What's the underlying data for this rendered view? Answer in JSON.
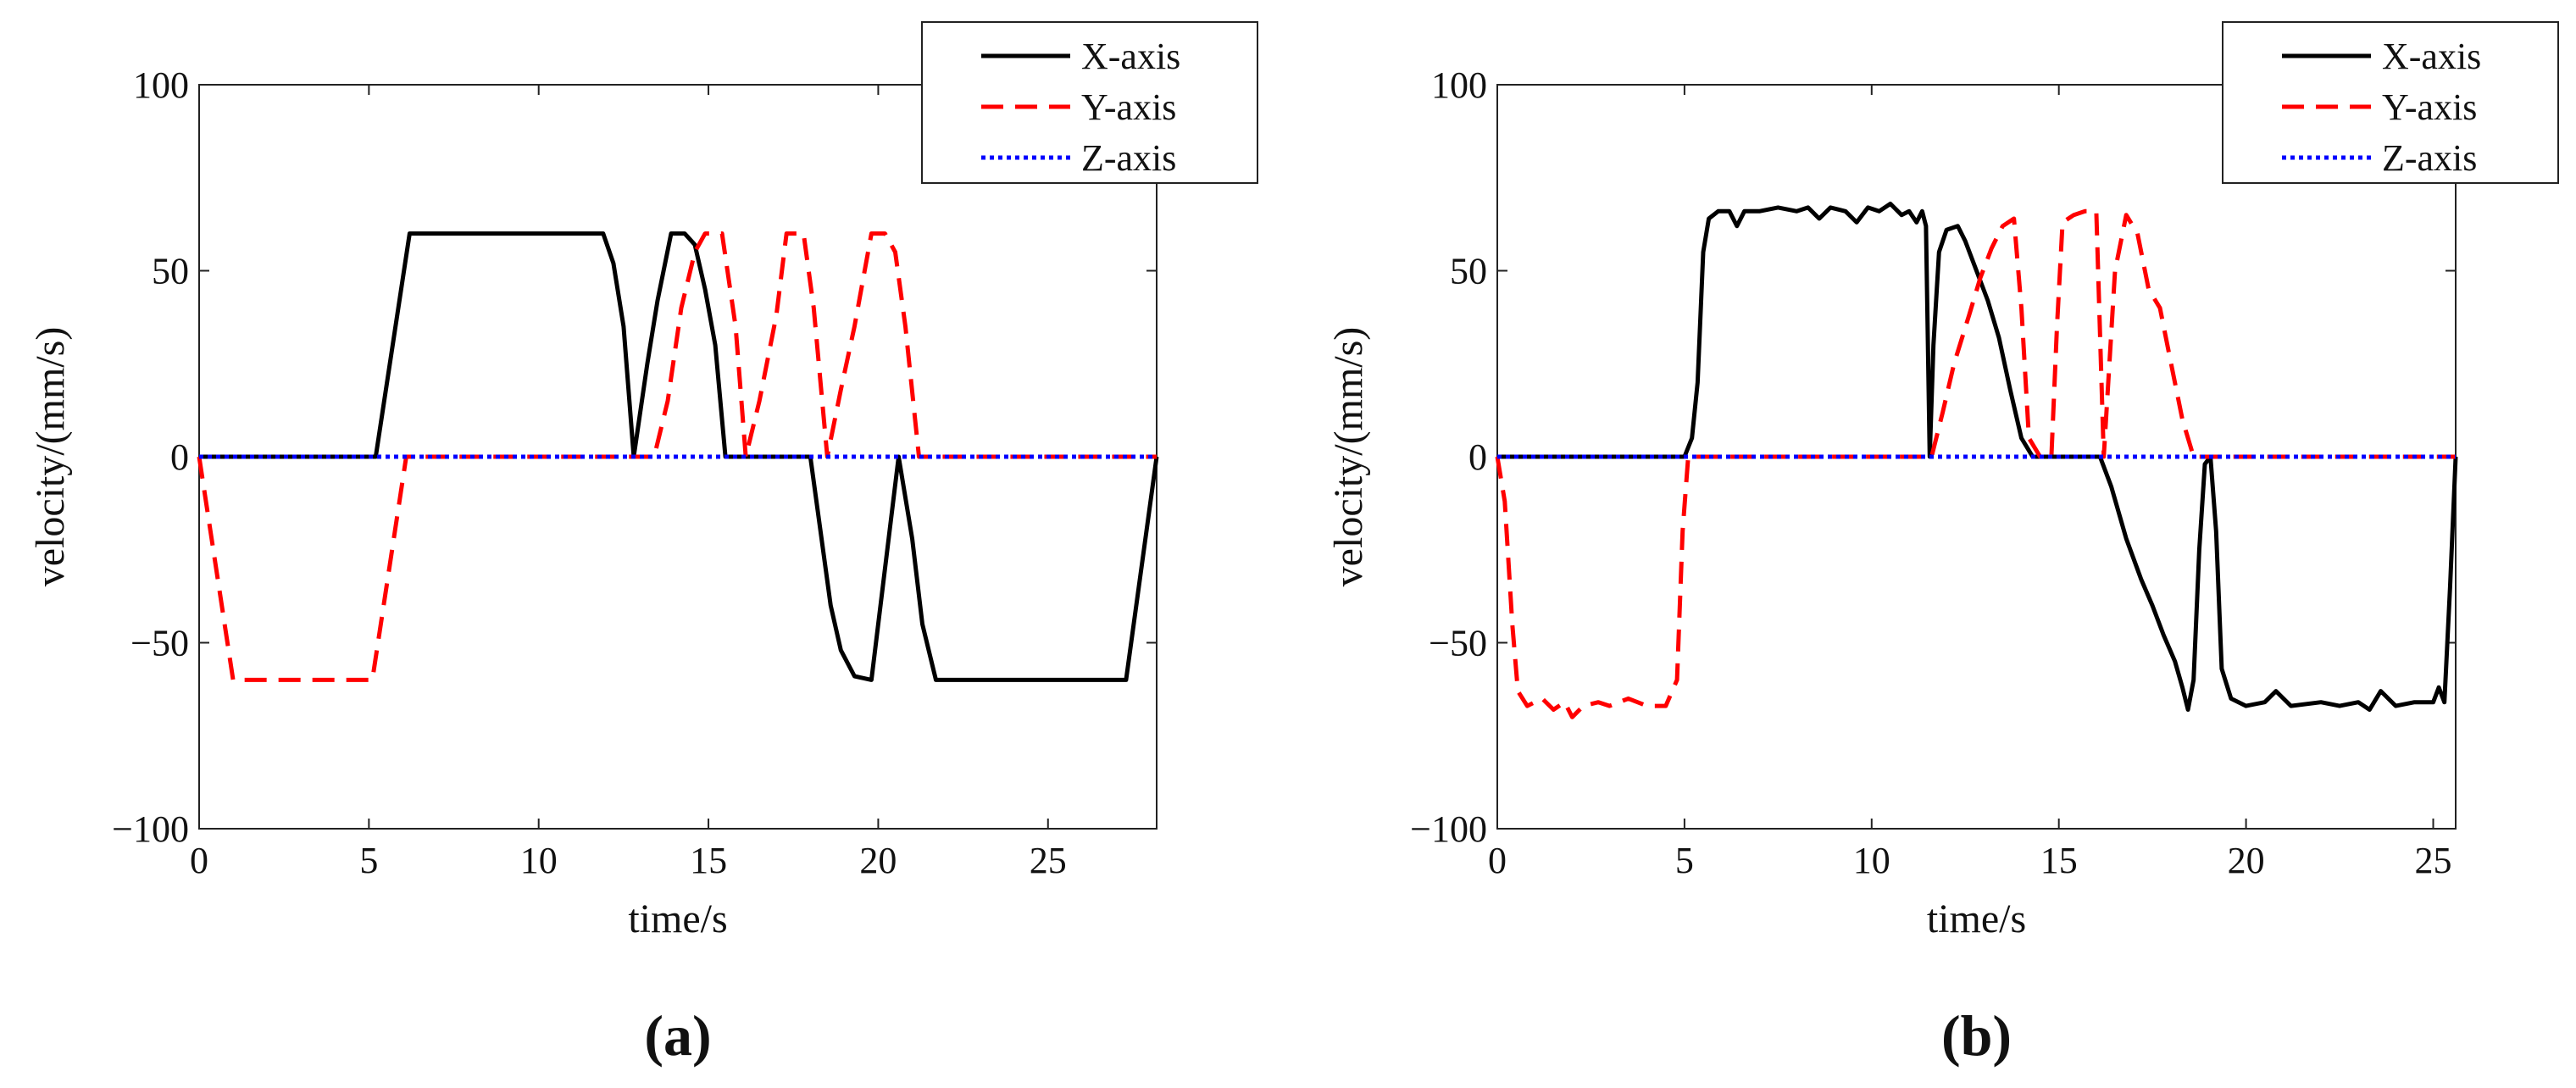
{
  "chart_data": [
    {
      "type": "line",
      "panel_label": "(a)",
      "xlabel": "time/s",
      "ylabel": "velocity/(mm/s)",
      "xlim": [
        0,
        28.2
      ],
      "ylim": [
        -100,
        100
      ],
      "xticks": [
        0,
        5,
        10,
        15,
        20,
        25
      ],
      "yticks": [
        100,
        50,
        0,
        -50,
        -100
      ],
      "ytick_labels": [
        "100",
        "50",
        "0",
        "−50",
        "−100"
      ],
      "legend": [
        "X-axis",
        "Y-axis",
        "Z-axis"
      ],
      "legend_position": "top-right",
      "series": [
        {
          "name": "X-axis",
          "color": "#000000",
          "style": "solid",
          "points": [
            [
              0,
              0
            ],
            [
              5.2,
              0
            ],
            [
              6.2,
              60
            ],
            [
              11.9,
              60
            ],
            [
              12.2,
              52
            ],
            [
              12.5,
              35
            ],
            [
              12.8,
              0
            ],
            [
              13.2,
              25
            ],
            [
              13.5,
              42
            ],
            [
              13.9,
              60
            ],
            [
              14.3,
              60
            ],
            [
              14.6,
              57
            ],
            [
              14.9,
              45
            ],
            [
              15.2,
              30
            ],
            [
              15.5,
              0
            ],
            [
              18.0,
              0
            ],
            [
              18.3,
              -20
            ],
            [
              18.6,
              -40
            ],
            [
              18.9,
              -52
            ],
            [
              19.3,
              -59
            ],
            [
              19.8,
              -60
            ],
            [
              20.6,
              0
            ],
            [
              21.0,
              -22
            ],
            [
              21.3,
              -45
            ],
            [
              21.7,
              -60
            ],
            [
              27.3,
              -60
            ],
            [
              28.2,
              0
            ]
          ]
        },
        {
          "name": "Y-axis",
          "color": "#ff0000",
          "style": "dashed",
          "points": [
            [
              0,
              0
            ],
            [
              1.0,
              -60
            ],
            [
              5.1,
              -60
            ],
            [
              6.1,
              0
            ],
            [
              13.4,
              0
            ],
            [
              13.8,
              15
            ],
            [
              14.2,
              40
            ],
            [
              14.6,
              55
            ],
            [
              14.9,
              60
            ],
            [
              15.4,
              60
            ],
            [
              15.8,
              35
            ],
            [
              16.1,
              0
            ],
            [
              16.5,
              15
            ],
            [
              17.0,
              38
            ],
            [
              17.3,
              60
            ],
            [
              17.8,
              60
            ],
            [
              18.1,
              40
            ],
            [
              18.5,
              0
            ],
            [
              18.9,
              18
            ],
            [
              19.3,
              35
            ],
            [
              19.8,
              60
            ],
            [
              20.2,
              60
            ],
            [
              20.5,
              55
            ],
            [
              20.8,
              35
            ],
            [
              21.2,
              0
            ],
            [
              28.2,
              0
            ]
          ]
        },
        {
          "name": "Z-axis",
          "color": "#0000ff",
          "style": "dotted",
          "points": [
            [
              0,
              0
            ],
            [
              28.2,
              0
            ]
          ]
        }
      ]
    },
    {
      "type": "line",
      "panel_label": "(b)",
      "xlabel": "time/s",
      "ylabel": "velocity/(mm/s)",
      "xlim": [
        0,
        25.6
      ],
      "ylim": [
        -100,
        100
      ],
      "xticks": [
        0,
        5,
        10,
        15,
        20,
        25
      ],
      "yticks": [
        100,
        50,
        0,
        -50,
        -100
      ],
      "ytick_labels": [
        "100",
        "50",
        "0",
        "−50",
        "−100"
      ],
      "legend": [
        "X-axis",
        "Y-axis",
        "Z-axis"
      ],
      "legend_position": "top-right",
      "series": [
        {
          "name": "X-axis",
          "color": "#000000",
          "style": "solid",
          "points": [
            [
              0,
              0
            ],
            [
              5.0,
              0
            ],
            [
              5.2,
              5
            ],
            [
              5.35,
              20
            ],
            [
              5.5,
              55
            ],
            [
              5.65,
              64
            ],
            [
              5.9,
              66
            ],
            [
              6.2,
              66
            ],
            [
              6.4,
              62
            ],
            [
              6.6,
              66
            ],
            [
              7.0,
              66
            ],
            [
              7.5,
              67
            ],
            [
              8.0,
              66
            ],
            [
              8.3,
              67
            ],
            [
              8.6,
              64
            ],
            [
              8.9,
              67
            ],
            [
              9.3,
              66
            ],
            [
              9.6,
              63
            ],
            [
              9.9,
              67
            ],
            [
              10.2,
              66
            ],
            [
              10.5,
              68
            ],
            [
              10.8,
              65
            ],
            [
              11.0,
              66
            ],
            [
              11.2,
              63
            ],
            [
              11.35,
              66
            ],
            [
              11.45,
              62
            ],
            [
              11.55,
              0
            ],
            [
              11.65,
              30
            ],
            [
              11.8,
              55
            ],
            [
              12.0,
              61
            ],
            [
              12.3,
              62
            ],
            [
              12.5,
              58
            ],
            [
              12.8,
              50
            ],
            [
              13.1,
              42
            ],
            [
              13.4,
              32
            ],
            [
              13.7,
              18
            ],
            [
              14.0,
              5
            ],
            [
              14.3,
              0
            ],
            [
              16.1,
              0
            ],
            [
              16.4,
              -8
            ],
            [
              16.8,
              -22
            ],
            [
              17.2,
              -33
            ],
            [
              17.5,
              -40
            ],
            [
              17.8,
              -48
            ],
            [
              18.1,
              -55
            ],
            [
              18.3,
              -62
            ],
            [
              18.45,
              -68
            ],
            [
              18.6,
              -60
            ],
            [
              18.75,
              -25
            ],
            [
              18.9,
              -2
            ],
            [
              19.05,
              0
            ],
            [
              19.2,
              -20
            ],
            [
              19.35,
              -57
            ],
            [
              19.6,
              -65
            ],
            [
              20.0,
              -67
            ],
            [
              20.5,
              -66
            ],
            [
              20.8,
              -63
            ],
            [
              21.2,
              -67
            ],
            [
              22.0,
              -66
            ],
            [
              22.5,
              -67
            ],
            [
              23.0,
              -66
            ],
            [
              23.3,
              -68
            ],
            [
              23.6,
              -63
            ],
            [
              24.0,
              -67
            ],
            [
              24.5,
              -66
            ],
            [
              25.0,
              -66
            ],
            [
              25.15,
              -62
            ],
            [
              25.3,
              -66
            ],
            [
              25.45,
              -35
            ],
            [
              25.6,
              0
            ]
          ]
        },
        {
          "name": "Y-axis",
          "color": "#ff0000",
          "style": "dashed",
          "points": [
            [
              0,
              0
            ],
            [
              0.2,
              -12
            ],
            [
              0.4,
              -45
            ],
            [
              0.55,
              -63
            ],
            [
              0.8,
              -67
            ],
            [
              1.2,
              -65
            ],
            [
              1.5,
              -68
            ],
            [
              1.8,
              -66
            ],
            [
              2.0,
              -70
            ],
            [
              2.3,
              -67
            ],
            [
              2.7,
              -66
            ],
            [
              3.0,
              -67
            ],
            [
              3.5,
              -65
            ],
            [
              4.0,
              -67
            ],
            [
              4.5,
              -67
            ],
            [
              4.8,
              -60
            ],
            [
              4.95,
              -20
            ],
            [
              5.1,
              0
            ],
            [
              11.6,
              0
            ],
            [
              11.9,
              12
            ],
            [
              12.2,
              25
            ],
            [
              12.6,
              38
            ],
            [
              12.9,
              48
            ],
            [
              13.2,
              56
            ],
            [
              13.5,
              62
            ],
            [
              13.8,
              64
            ],
            [
              14.0,
              40
            ],
            [
              14.2,
              5
            ],
            [
              14.5,
              0
            ],
            [
              14.8,
              0
            ],
            [
              14.95,
              35
            ],
            [
              15.1,
              63
            ],
            [
              15.4,
              65
            ],
            [
              15.7,
              66
            ],
            [
              16.0,
              66
            ],
            [
              16.2,
              0
            ],
            [
              16.5,
              50
            ],
            [
              16.8,
              65
            ],
            [
              17.1,
              60
            ],
            [
              17.4,
              45
            ],
            [
              17.7,
              40
            ],
            [
              18.0,
              25
            ],
            [
              18.3,
              10
            ],
            [
              18.6,
              0
            ],
            [
              25.6,
              0
            ]
          ]
        },
        {
          "name": "Z-axis",
          "color": "#0000ff",
          "style": "dotted",
          "points": [
            [
              0,
              0
            ],
            [
              25.6,
              0
            ]
          ]
        }
      ]
    }
  ]
}
